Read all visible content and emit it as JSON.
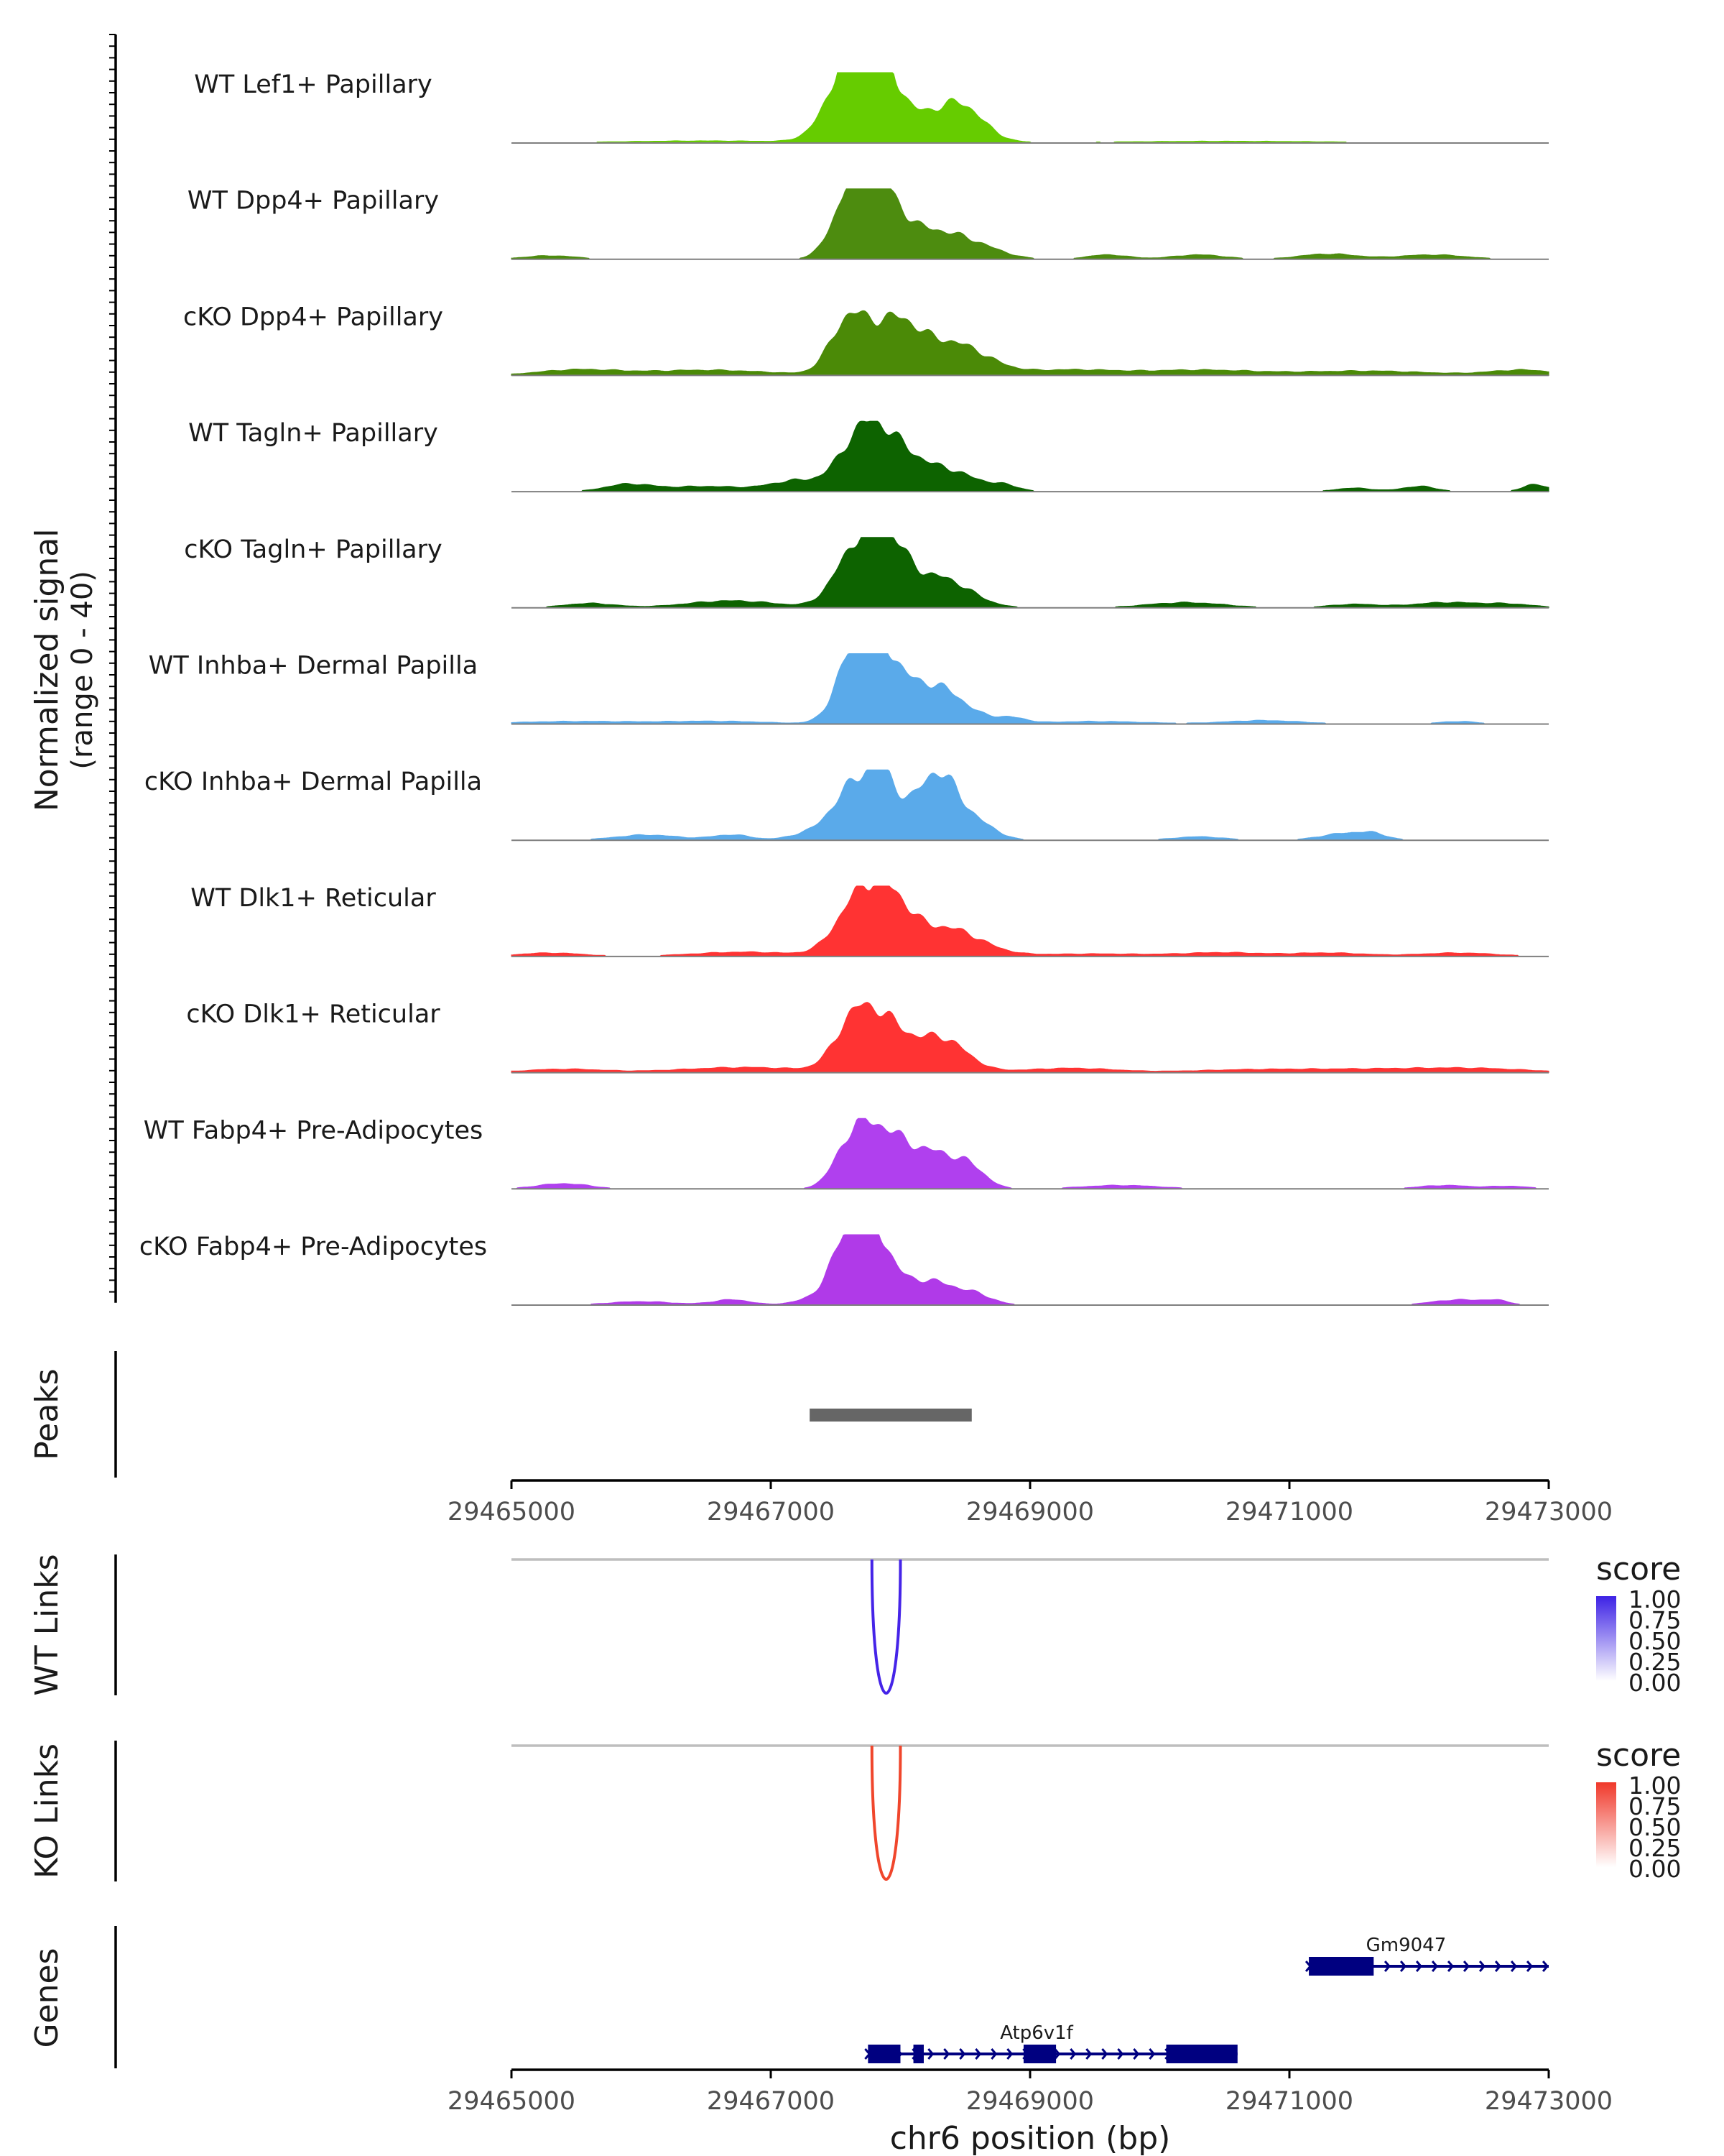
{
  "chart_data": {
    "type": "area",
    "region": "chr6",
    "x_range": [
      29465000,
      29473000
    ],
    "xlabel": "chr6 position (bp)",
    "x_ticks": [
      "29465000",
      "29467000",
      "29469000",
      "29471000",
      "29473000"
    ],
    "ylabel_line1": "Normalized signal",
    "ylabel_line2": "(range 0 - 40)",
    "y_range": [
      0,
      40
    ],
    "tracks": [
      {
        "name": "WT Lef1+ Papillary",
        "color": "#66cc00",
        "peaks": [
          [
            29467650,
            40,
            190
          ],
          [
            29467780,
            38,
            170
          ],
          [
            29468300,
            16,
            250
          ],
          [
            29468500,
            10,
            150
          ],
          [
            29466500,
            1.2,
            700
          ],
          [
            29470500,
            1,
            900
          ]
        ]
      },
      {
        "name": "WT Dpp4+ Papillary",
        "color": "#4d8c0f",
        "peaks": [
          [
            29467650,
            38,
            150
          ],
          [
            29467850,
            30,
            170
          ],
          [
            29468250,
            14,
            220
          ],
          [
            29468600,
            6,
            200
          ],
          [
            29465300,
            2,
            200
          ],
          [
            29469600,
            2.5,
            160
          ],
          [
            29470300,
            2.5,
            200
          ],
          [
            29471300,
            3,
            220
          ],
          [
            29472100,
            2.5,
            260
          ]
        ]
      },
      {
        "name": "cKO Dpp4+ Papillary",
        "color": "#4b8a07",
        "peaks": [
          [
            29467600,
            30,
            140
          ],
          [
            29467950,
            28,
            180
          ],
          [
            29468400,
            18,
            260
          ],
          [
            29466500,
            3,
            500
          ],
          [
            29465500,
            3,
            300
          ],
          [
            29469300,
            3,
            350
          ],
          [
            29470300,
            3,
            450
          ],
          [
            29471600,
            2.5,
            500
          ],
          [
            29472800,
            3,
            250
          ]
        ]
      },
      {
        "name": "WT Tagln+ Papillary",
        "color": "#0d6300",
        "peaks": [
          [
            29467700,
            30,
            170
          ],
          [
            29467950,
            20,
            180
          ],
          [
            29468350,
            12,
            220
          ],
          [
            29468800,
            3,
            120
          ],
          [
            29467200,
            6,
            200
          ],
          [
            29465900,
            4,
            180
          ],
          [
            29466500,
            3,
            300
          ],
          [
            29471500,
            2,
            150
          ],
          [
            29472000,
            3,
            130
          ],
          [
            29472900,
            4,
            100
          ]
        ]
      },
      {
        "name": "cKO Tagln+ Papillary",
        "color": "#0d6300",
        "peaks": [
          [
            29467650,
            30,
            160
          ],
          [
            29467900,
            32,
            150
          ],
          [
            29468300,
            17,
            230
          ],
          [
            29466700,
            4,
            350
          ],
          [
            29465600,
            2.5,
            200
          ],
          [
            29470200,
            3,
            300
          ],
          [
            29471500,
            2,
            200
          ],
          [
            29472200,
            3,
            250
          ],
          [
            29472700,
            2,
            200
          ]
        ]
      },
      {
        "name": "WT Inhba+ Dermal Papilla",
        "color": "#5aaaea",
        "peaks": [
          [
            29467650,
            36,
            140
          ],
          [
            29467850,
            32,
            150
          ],
          [
            29468250,
            22,
            230
          ],
          [
            29468850,
            3,
            120
          ],
          [
            29465500,
            1.5,
            500
          ],
          [
            29466600,
            1.5,
            400
          ],
          [
            29469500,
            1.5,
            400
          ],
          [
            29470800,
            2,
            300
          ],
          [
            29472300,
            1.5,
            150
          ]
        ]
      },
      {
        "name": "cKO Inhba+ Dermal Papilla",
        "color": "#5aaaea",
        "peaks": [
          [
            29467600,
            25,
            140
          ],
          [
            29467850,
            36,
            130
          ],
          [
            29468280,
            38,
            160
          ],
          [
            29468600,
            8,
            150
          ],
          [
            29466050,
            3,
            250
          ],
          [
            29466700,
            3,
            150
          ],
          [
            29467300,
            4,
            150
          ],
          [
            29470300,
            2,
            200
          ],
          [
            29471450,
            4,
            200
          ],
          [
            29471650,
            2,
            100
          ]
        ]
      },
      {
        "name": "WT Dlk1+ Reticular",
        "color": "#ff3333",
        "peaks": [
          [
            29467700,
            34,
            180
          ],
          [
            29467950,
            20,
            150
          ],
          [
            29468350,
            16,
            260
          ],
          [
            29466800,
            2.5,
            400
          ],
          [
            29465300,
            2,
            250
          ],
          [
            29469500,
            1.5,
            500
          ],
          [
            29470500,
            2,
            300
          ],
          [
            29471300,
            2,
            300
          ],
          [
            29472300,
            2,
            300
          ]
        ]
      },
      {
        "name": "cKO Dlk1+ Reticular",
        "color": "#ff3333",
        "peaks": [
          [
            29467650,
            30,
            150
          ],
          [
            29467900,
            22,
            150
          ],
          [
            29468300,
            20,
            200
          ],
          [
            29466800,
            3,
            500
          ],
          [
            29465400,
            2,
            300
          ],
          [
            29469300,
            2.5,
            350
          ],
          [
            29470700,
            1.5,
            500
          ],
          [
            29471800,
            2,
            600
          ],
          [
            29472500,
            1.5,
            400
          ]
        ]
      },
      {
        "name": "WT Fabp4+ Pre-Adipocytes",
        "color": "#b040ee",
        "peaks": [
          [
            29467650,
            30,
            140
          ],
          [
            29467900,
            24,
            150
          ],
          [
            29468250,
            20,
            200
          ],
          [
            29468550,
            8,
            120
          ],
          [
            29465400,
            3,
            200
          ],
          [
            29469700,
            2,
            300
          ],
          [
            29472200,
            2,
            200
          ],
          [
            29472700,
            1.5,
            150
          ]
        ]
      },
      {
        "name": "cKO Fabp4+ Pre-Adipocytes",
        "color": "#b03ae8",
        "peaks": [
          [
            29467600,
            36,
            140
          ],
          [
            29467800,
            30,
            130
          ],
          [
            29468200,
            14,
            250
          ],
          [
            29468600,
            3,
            120
          ],
          [
            29466000,
            2,
            250
          ],
          [
            29466700,
            3,
            150
          ],
          [
            29467250,
            2,
            120
          ],
          [
            29472300,
            3,
            200
          ],
          [
            29472600,
            2,
            100
          ]
        ]
      }
    ],
    "peaks_label": "Peaks",
    "peak_region": [
      29467300,
      29468550
    ],
    "links": [
      {
        "label": "WT Links",
        "color": "#4524e8",
        "start": 29467780,
        "end": 29468000,
        "score": 1.0,
        "legend_title": "score",
        "legend_ticks": [
          "1.00",
          "0.75",
          "0.50",
          "0.25",
          "0.00"
        ],
        "legend_color": "#3d22e5"
      },
      {
        "label": "KO Links",
        "color": "#f0462c",
        "start": 29467780,
        "end": 29468000,
        "score": 1.0,
        "legend_title": "score",
        "legend_ticks": [
          "1.00",
          "0.75",
          "0.50",
          "0.25",
          "0.00"
        ],
        "legend_color": "#f0382a"
      }
    ],
    "genes_label": "Genes",
    "genes": [
      {
        "name": "Gm9047",
        "start": 29471150,
        "end": 29473000,
        "strand": "+",
        "row": 0,
        "exons": [
          [
            29471150,
            29471650
          ]
        ]
      },
      {
        "name": "Atp6v1f",
        "start": 29467750,
        "end": 29470600,
        "strand": "+",
        "row": 1,
        "exons": [
          [
            29467750,
            29468000
          ],
          [
            29468100,
            29468180
          ],
          [
            29468950,
            29469200
          ],
          [
            29470050,
            29470600
          ]
        ]
      }
    ],
    "gene_color": "#000080"
  }
}
